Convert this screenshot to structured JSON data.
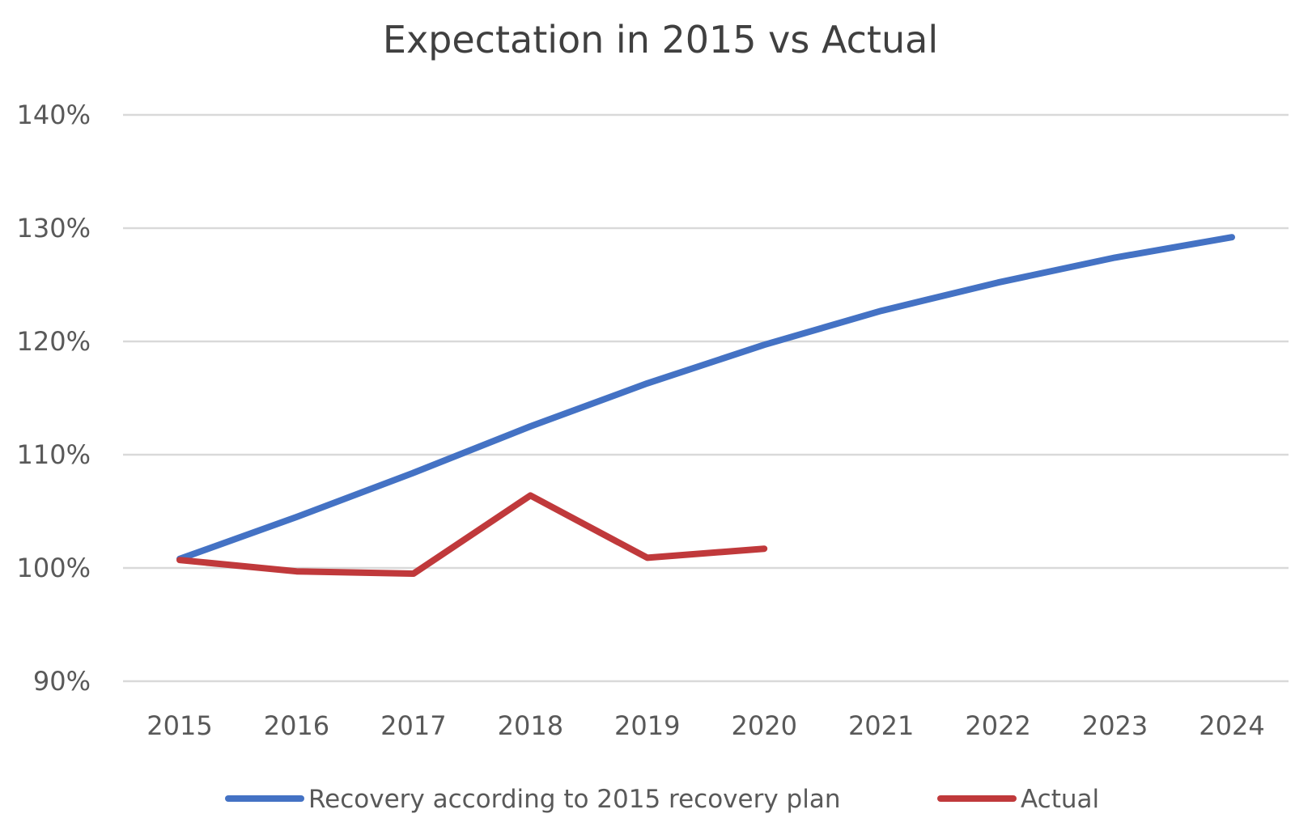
{
  "chart_data": {
    "type": "line",
    "title": "Expectation in 2015 vs Actual",
    "xlabel": "",
    "ylabel": "",
    "categories": [
      "2015",
      "2016",
      "2017",
      "2018",
      "2019",
      "2020",
      "2021",
      "2022",
      "2023",
      "2024"
    ],
    "ylim": [
      90,
      140
    ],
    "yticks": [
      90,
      100,
      110,
      120,
      130,
      140
    ],
    "ytick_labels": [
      "90%",
      "100%",
      "110%",
      "120%",
      "130%",
      "140%"
    ],
    "grid": true,
    "legend_position": "bottom",
    "series": [
      {
        "name": "Recovery according to 2015 recovery plan",
        "color": "#4472c4",
        "values": [
          100.8,
          104.5,
          108.4,
          112.5,
          116.3,
          119.7,
          122.7,
          125.2,
          127.4,
          129.2
        ]
      },
      {
        "name": "Actual",
        "color": "#c0393b",
        "values": [
          100.7,
          99.7,
          99.5,
          106.4,
          100.9,
          101.7,
          null,
          null,
          null,
          null
        ]
      }
    ]
  }
}
